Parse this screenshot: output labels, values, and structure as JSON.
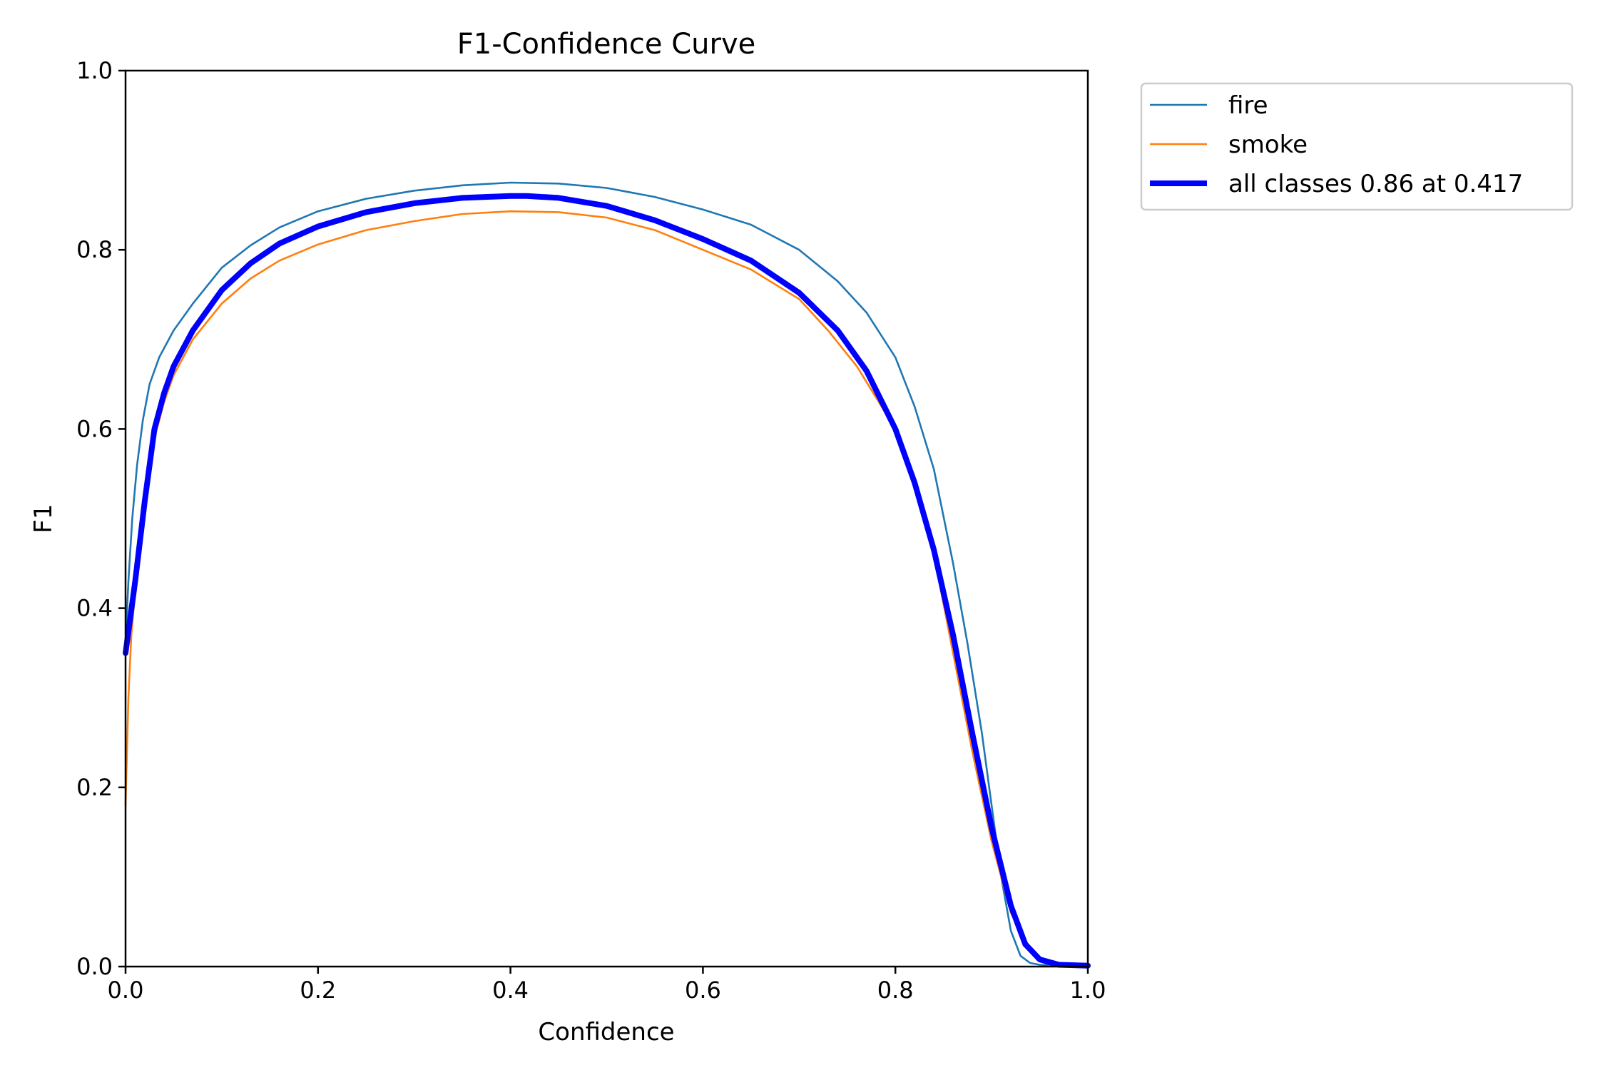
{
  "chart_data": {
    "type": "line",
    "title": "F1-Confidence Curve",
    "xlabel": "Confidence",
    "ylabel": "F1",
    "xlim": [
      0.0,
      1.0
    ],
    "ylim": [
      0.0,
      1.0
    ],
    "xticks": [
      "0.0",
      "0.2",
      "0.4",
      "0.6",
      "0.8",
      "1.0"
    ],
    "yticks": [
      "0.0",
      "0.2",
      "0.4",
      "0.6",
      "0.8",
      "1.0"
    ],
    "grid": false,
    "legend_position": "outside-upper-right",
    "series": [
      {
        "name": "fire",
        "color": "#1f77b4",
        "line_style": "thin",
        "x": [
          0.0,
          0.003,
          0.007,
          0.012,
          0.018,
          0.025,
          0.035,
          0.05,
          0.07,
          0.1,
          0.13,
          0.16,
          0.2,
          0.25,
          0.3,
          0.35,
          0.4,
          0.45,
          0.5,
          0.55,
          0.6,
          0.65,
          0.7,
          0.74,
          0.77,
          0.8,
          0.82,
          0.84,
          0.86,
          0.875,
          0.89,
          0.9,
          0.91,
          0.92,
          0.93,
          0.94,
          0.95,
          0.97,
          1.0
        ],
        "y": [
          0.36,
          0.43,
          0.5,
          0.56,
          0.61,
          0.65,
          0.68,
          0.71,
          0.74,
          0.78,
          0.805,
          0.825,
          0.843,
          0.857,
          0.866,
          0.872,
          0.875,
          0.874,
          0.869,
          0.859,
          0.845,
          0.828,
          0.8,
          0.765,
          0.73,
          0.68,
          0.625,
          0.555,
          0.45,
          0.36,
          0.26,
          0.18,
          0.1,
          0.04,
          0.012,
          0.004,
          0.002,
          0.001,
          0.0
        ]
      },
      {
        "name": "smoke",
        "color": "#ff7f0e",
        "line_style": "thin",
        "x": [
          0.0,
          0.003,
          0.006,
          0.01,
          0.015,
          0.02,
          0.025,
          0.03,
          0.04,
          0.05,
          0.07,
          0.1,
          0.13,
          0.16,
          0.2,
          0.25,
          0.3,
          0.35,
          0.4,
          0.45,
          0.5,
          0.55,
          0.6,
          0.65,
          0.7,
          0.73,
          0.76,
          0.8,
          0.82,
          0.84,
          0.86,
          0.88,
          0.9,
          0.92,
          0.94,
          0.95,
          0.97,
          1.0
        ],
        "y": [
          0.18,
          0.3,
          0.37,
          0.42,
          0.47,
          0.52,
          0.56,
          0.59,
          0.63,
          0.66,
          0.7,
          0.74,
          0.768,
          0.788,
          0.806,
          0.822,
          0.832,
          0.84,
          0.843,
          0.842,
          0.836,
          0.822,
          0.8,
          0.778,
          0.745,
          0.71,
          0.67,
          0.6,
          0.54,
          0.46,
          0.35,
          0.24,
          0.14,
          0.06,
          0.02,
          0.008,
          0.002,
          0.0
        ]
      },
      {
        "name": "all classes 0.86 at 0.417",
        "color": "#0000ff",
        "line_style": "thick",
        "x": [
          0.0,
          0.01,
          0.02,
          0.03,
          0.04,
          0.05,
          0.07,
          0.1,
          0.13,
          0.16,
          0.2,
          0.25,
          0.3,
          0.35,
          0.4,
          0.417,
          0.45,
          0.5,
          0.55,
          0.6,
          0.65,
          0.7,
          0.74,
          0.77,
          0.8,
          0.82,
          0.84,
          0.86,
          0.88,
          0.9,
          0.92,
          0.935,
          0.95,
          0.97,
          1.0
        ],
        "y": [
          0.35,
          0.43,
          0.52,
          0.6,
          0.64,
          0.67,
          0.71,
          0.755,
          0.785,
          0.807,
          0.826,
          0.842,
          0.852,
          0.858,
          0.86,
          0.86,
          0.858,
          0.849,
          0.833,
          0.812,
          0.788,
          0.752,
          0.71,
          0.665,
          0.6,
          0.54,
          0.465,
          0.37,
          0.26,
          0.155,
          0.068,
          0.025,
          0.008,
          0.002,
          0.001
        ]
      }
    ]
  }
}
